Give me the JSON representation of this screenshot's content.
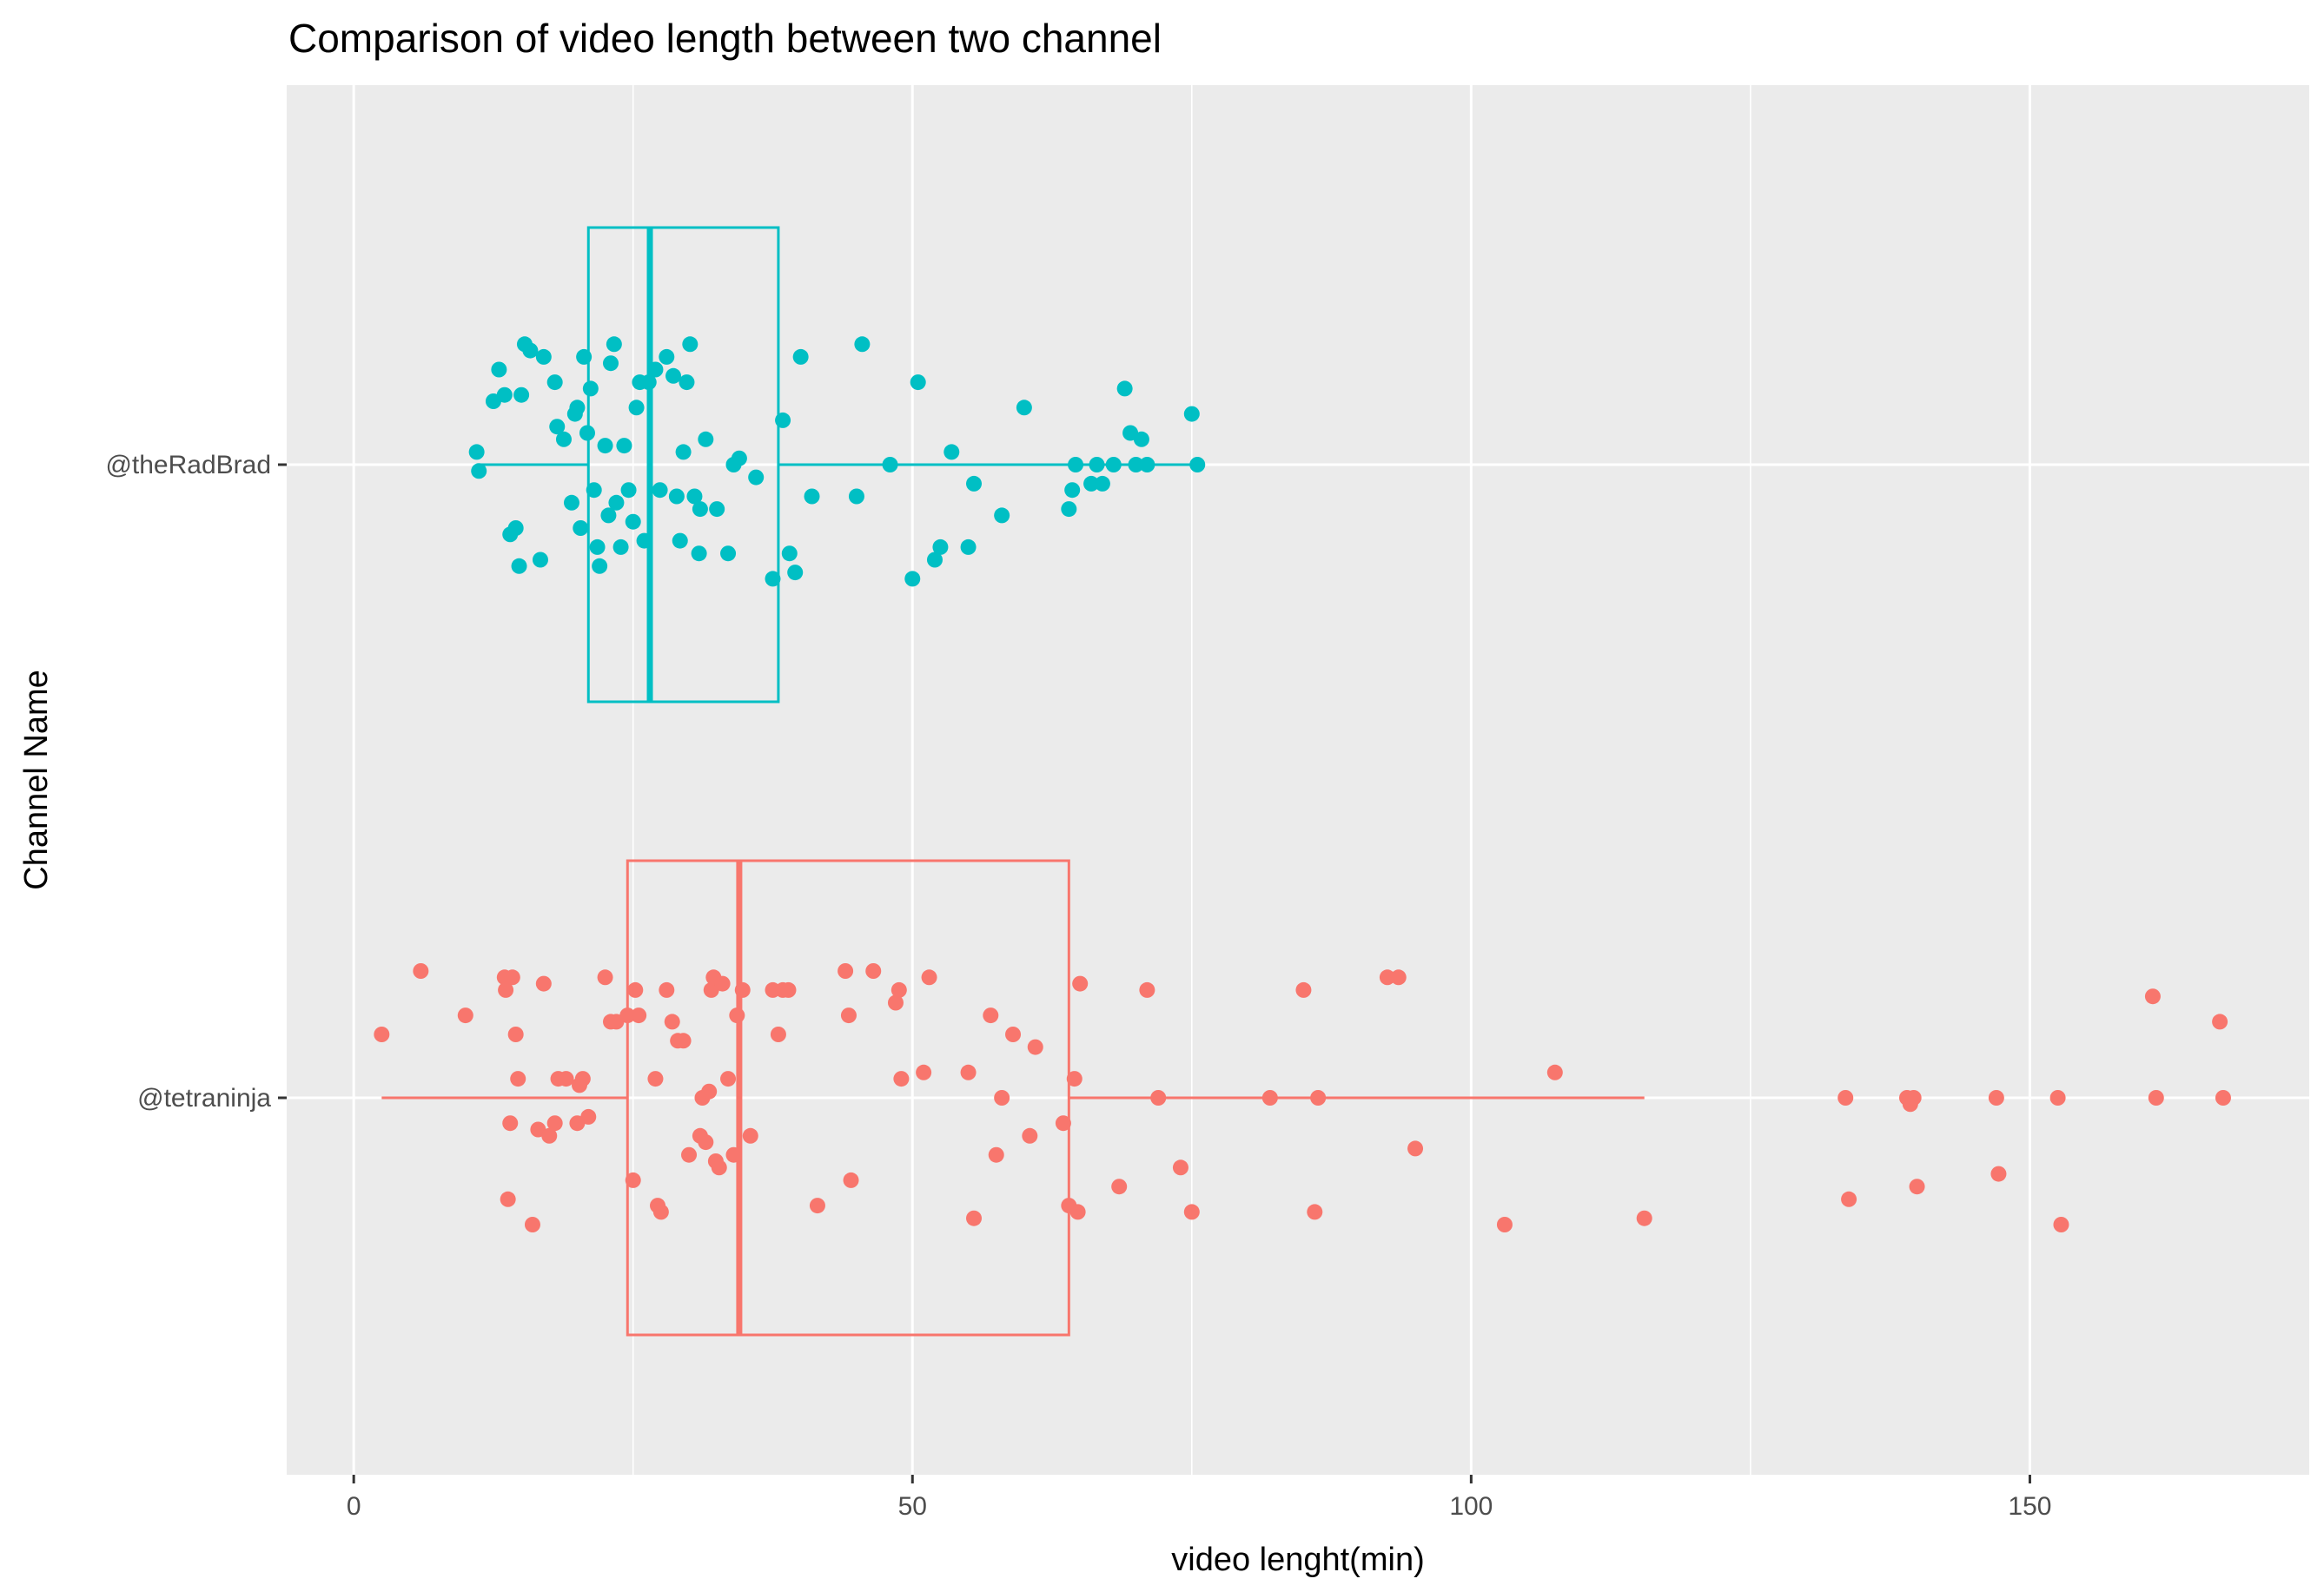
{
  "chart_data": {
    "type": "scatter",
    "title": "Comparison of video length between two channel",
    "xlabel": "video lenght(min)",
    "ylabel": "Channel Name",
    "xlim": [
      -6,
      175
    ],
    "x_ticks": [
      0,
      50,
      100,
      150
    ],
    "x_tick_labels": [
      "0",
      "50",
      "100",
      "150"
    ],
    "grid": true,
    "background": "#ebebeb",
    "categories": [
      "@theRadBrad",
      "@tetraninja"
    ],
    "series": [
      {
        "category": "@theRadBrad",
        "color": "#00bfc4",
        "box": {
          "min": 11,
          "q1": 21,
          "median": 26.5,
          "q3": 38,
          "max": 75
        },
        "points": [
          [
            11,
            0.02
          ],
          [
            11.2,
            -0.01
          ],
          [
            12.5,
            0.1
          ],
          [
            13,
            0.15
          ],
          [
            13.5,
            0.11
          ],
          [
            14,
            -0.11
          ],
          [
            14.5,
            -0.1
          ],
          [
            14.8,
            -0.16
          ],
          [
            15,
            0.11
          ],
          [
            15.3,
            0.19
          ],
          [
            15.8,
            0.18
          ],
          [
            16.7,
            -0.15
          ],
          [
            17,
            0.17
          ],
          [
            18,
            0.13
          ],
          [
            18.2,
            0.06
          ],
          [
            18.8,
            0.04
          ],
          [
            19.5,
            -0.06
          ],
          [
            19.8,
            0.08
          ],
          [
            20,
            0.09
          ],
          [
            20.3,
            -0.1
          ],
          [
            20.6,
            0.17
          ],
          [
            20.9,
            0.05
          ],
          [
            21.2,
            0.12
          ],
          [
            21.5,
            -0.04
          ],
          [
            21.8,
            -0.13
          ],
          [
            22,
            -0.16
          ],
          [
            22.5,
            0.03
          ],
          [
            22.8,
            -0.08
          ],
          [
            23,
            0.16
          ],
          [
            23.3,
            0.19
          ],
          [
            23.5,
            -0.06
          ],
          [
            23.9,
            -0.13
          ],
          [
            24.2,
            0.03
          ],
          [
            24.6,
            -0.04
          ],
          [
            25,
            -0.09
          ],
          [
            25.3,
            0.09
          ],
          [
            25.6,
            0.13
          ],
          [
            26,
            -0.12
          ],
          [
            26.4,
            0.13
          ],
          [
            27,
            0.15
          ],
          [
            27.4,
            -0.04
          ],
          [
            28,
            0.17
          ],
          [
            28.6,
            0.14
          ],
          [
            28.9,
            -0.05
          ],
          [
            29.2,
            -0.12
          ],
          [
            29.5,
            0.02
          ],
          [
            29.8,
            0.13
          ],
          [
            30.1,
            0.19
          ],
          [
            30.5,
            -0.05
          ],
          [
            30.9,
            -0.14
          ],
          [
            31,
            -0.07
          ],
          [
            31.5,
            0.04
          ],
          [
            32.5,
            -0.07
          ],
          [
            33.5,
            -0.14
          ],
          [
            34,
            0.0
          ],
          [
            34.5,
            0.01
          ],
          [
            36,
            -0.02
          ],
          [
            37.5,
            -0.18
          ],
          [
            38.4,
            0.07
          ],
          [
            39,
            -0.14
          ],
          [
            39.5,
            -0.17
          ],
          [
            40,
            0.17
          ],
          [
            41,
            -0.05
          ],
          [
            45,
            -0.05
          ],
          [
            45.5,
            0.19
          ],
          [
            48,
            0.0
          ],
          [
            50,
            -0.18
          ],
          [
            50.5,
            0.13
          ],
          [
            52,
            -0.15
          ],
          [
            52.5,
            -0.13
          ],
          [
            53.5,
            0.02
          ],
          [
            55,
            -0.13
          ],
          [
            55.5,
            -0.03
          ],
          [
            58,
            -0.08
          ],
          [
            60,
            0.09
          ],
          [
            64,
            -0.07
          ],
          [
            64.3,
            -0.04
          ],
          [
            64.6,
            0.0
          ],
          [
            66,
            -0.03
          ],
          [
            66.5,
            0.0
          ],
          [
            67,
            -0.03
          ],
          [
            68,
            0.0
          ],
          [
            69,
            0.12
          ],
          [
            69.5,
            0.05
          ],
          [
            70,
            0.0
          ],
          [
            70.5,
            0.04
          ],
          [
            71,
            0.0
          ],
          [
            75,
            0.08
          ],
          [
            75.5,
            0.0
          ]
        ]
      },
      {
        "category": "@tetraninja",
        "color": "#f8766d",
        "box": {
          "min": 2.5,
          "q1": 24.5,
          "median": 34.5,
          "q3": 64,
          "max": 115.5
        },
        "points": [
          [
            2.5,
            0.1
          ],
          [
            6,
            0.2
          ],
          [
            10,
            0.13
          ],
          [
            13.5,
            0.19
          ],
          [
            13.6,
            0.17
          ],
          [
            13.8,
            -0.16
          ],
          [
            14,
            -0.04
          ],
          [
            14.2,
            0.19
          ],
          [
            14.5,
            0.1
          ],
          [
            14.7,
            0.03
          ],
          [
            16,
            -0.2
          ],
          [
            16.5,
            -0.05
          ],
          [
            17,
            0.18
          ],
          [
            17.5,
            -0.06
          ],
          [
            18,
            -0.04
          ],
          [
            18.3,
            0.03
          ],
          [
            19,
            0.03
          ],
          [
            20,
            -0.04
          ],
          [
            20.2,
            0.02
          ],
          [
            20.5,
            0.03
          ],
          [
            21,
            -0.03
          ],
          [
            22.5,
            0.19
          ],
          [
            23,
            0.12
          ],
          [
            23.5,
            0.12
          ],
          [
            24.5,
            0.13
          ],
          [
            25,
            -0.13
          ],
          [
            25.2,
            0.17
          ],
          [
            25.5,
            0.13
          ],
          [
            27,
            0.03
          ],
          [
            27.2,
            -0.17
          ],
          [
            27.5,
            -0.18
          ],
          [
            28,
            0.17
          ],
          [
            28.5,
            0.12
          ],
          [
            29,
            0.09
          ],
          [
            29.5,
            0.09
          ],
          [
            30,
            -0.09
          ],
          [
            31,
            -0.06
          ],
          [
            31.2,
            0.0
          ],
          [
            31.5,
            -0.07
          ],
          [
            31.8,
            0.01
          ],
          [
            32,
            0.17
          ],
          [
            32.2,
            0.19
          ],
          [
            32.4,
            -0.1
          ],
          [
            32.7,
            -0.11
          ],
          [
            33,
            0.18
          ],
          [
            33.5,
            0.03
          ],
          [
            34,
            -0.09
          ],
          [
            34.3,
            0.13
          ],
          [
            34.8,
            0.17
          ],
          [
            35.5,
            -0.06
          ],
          [
            37.5,
            0.17
          ],
          [
            38,
            0.1
          ],
          [
            38.4,
            0.17
          ],
          [
            38.9,
            0.17
          ],
          [
            41.5,
            -0.17
          ],
          [
            44,
            0.2
          ],
          [
            44.3,
            0.13
          ],
          [
            44.5,
            -0.13
          ],
          [
            46.5,
            0.2
          ],
          [
            48.5,
            0.15
          ],
          [
            48.8,
            0.17
          ],
          [
            49,
            0.03
          ],
          [
            51,
            0.04
          ],
          [
            51.5,
            0.19
          ],
          [
            55,
            0.04
          ],
          [
            55.5,
            -0.19
          ],
          [
            57,
            0.13
          ],
          [
            57.5,
            -0.09
          ],
          [
            58,
            0.0
          ],
          [
            59,
            0.1
          ],
          [
            60.5,
            -0.06
          ],
          [
            61,
            0.08
          ],
          [
            63.5,
            -0.04
          ],
          [
            64,
            -0.17
          ],
          [
            64.5,
            0.03
          ],
          [
            64.8,
            -0.18
          ],
          [
            65,
            0.18
          ],
          [
            68.5,
            -0.14
          ],
          [
            71,
            0.17
          ],
          [
            72,
            0.0
          ],
          [
            74,
            -0.11
          ],
          [
            75,
            -0.18
          ],
          [
            82,
            0.0
          ],
          [
            85,
            0.17
          ],
          [
            86,
            -0.18
          ],
          [
            86.3,
            0.0
          ],
          [
            92.5,
            0.19
          ],
          [
            93.5,
            0.19
          ],
          [
            95,
            -0.08
          ],
          [
            103,
            -0.2
          ],
          [
            107.5,
            0.04
          ],
          [
            115.5,
            -0.19
          ],
          [
            133.5,
            0.0
          ],
          [
            133.8,
            -0.16
          ],
          [
            139,
            0.0
          ],
          [
            139.3,
            -0.01
          ],
          [
            139.6,
            0.0
          ],
          [
            139.9,
            -0.14
          ],
          [
            147,
            0.0
          ],
          [
            147.2,
            -0.12
          ],
          [
            152.5,
            0.0
          ],
          [
            152.8,
            -0.2
          ],
          [
            161,
            0.16
          ],
          [
            161.3,
            0.0
          ],
          [
            167,
            0.12
          ],
          [
            167.3,
            0.0
          ]
        ]
      }
    ]
  }
}
